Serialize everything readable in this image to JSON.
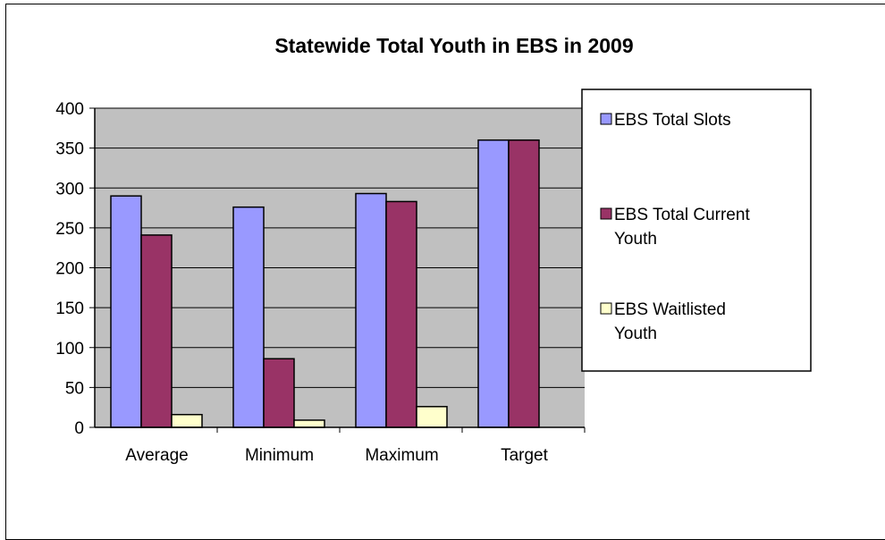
{
  "chart_data": {
    "type": "bar",
    "title": "Statewide Total Youth in EBS in 2009",
    "categories": [
      "Average",
      "Minimum",
      "Maximum",
      "Target"
    ],
    "series": [
      {
        "name": "EBS Total Slots",
        "values": [
          290,
          276,
          293,
          360
        ],
        "color": "#9999ff"
      },
      {
        "name": "EBS Total Current Youth",
        "values": [
          241,
          86,
          283,
          360
        ],
        "color": "#993366"
      },
      {
        "name": "EBS Waitlisted Youth",
        "values": [
          16,
          9,
          26,
          null
        ],
        "color": "#ffffcc"
      }
    ],
    "ylim": [
      0,
      400
    ],
    "yticks": [
      0,
      50,
      100,
      150,
      200,
      250,
      300,
      350,
      400
    ],
    "ytick_labels": [
      "0",
      "50",
      "100",
      "150",
      "200",
      "250",
      "300",
      "350",
      "400"
    ],
    "grid": true,
    "plot_background": "#c0c0c0",
    "legend_position": "right",
    "legend_labels": [
      [
        "EBS Total Slots"
      ],
      [
        "EBS Total Current",
        "Youth"
      ],
      [
        "EBS Waitlisted",
        "Youth"
      ]
    ]
  }
}
